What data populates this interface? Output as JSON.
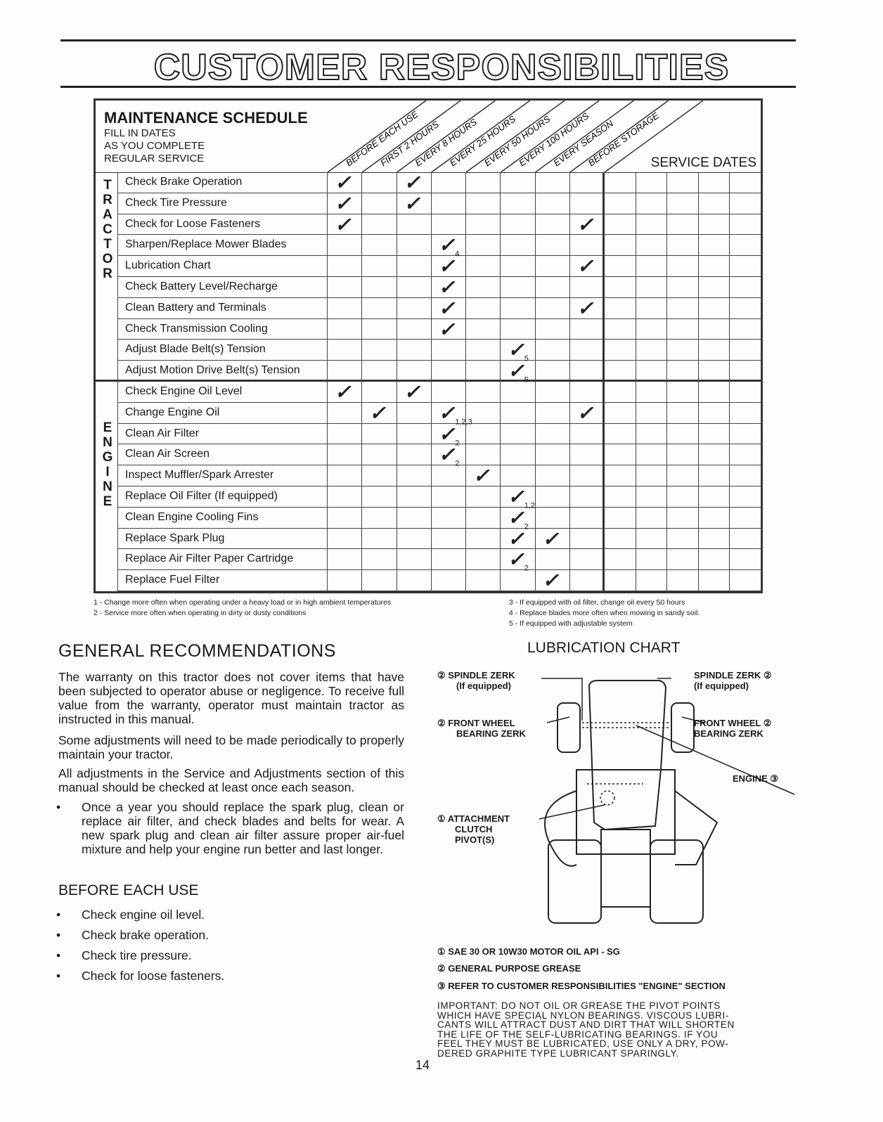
{
  "title": "CUSTOMER RESPONSIBILITIES",
  "schedule": {
    "heading": "MAINTENANCE SCHEDULE",
    "subheading": [
      "FILL IN DATES",
      "AS YOU COMPLETE",
      "REGULAR SERVICE"
    ],
    "intervals": [
      "BEFORE EACH USE",
      "FIRST 2 HOURS",
      "EVERY 8 HOURS",
      "EVERY 25 HOURS",
      "EVERY 50 HOURS",
      "EVERY 100 HOURS",
      "EVERY SEASON",
      "BEFORE STORAGE"
    ],
    "service_dates_label": "SERVICE DATES",
    "sections": [
      {
        "label": "TRACTOR",
        "rows": [
          {
            "task": "Check Brake Operation",
            "checks": [
              {
                "col": 0
              },
              {
                "col": 2
              }
            ]
          },
          {
            "task": "Check Tire Pressure",
            "checks": [
              {
                "col": 0
              },
              {
                "col": 2
              }
            ]
          },
          {
            "task": "Check for Loose Fasteners",
            "checks": [
              {
                "col": 0
              },
              {
                "col": 7
              }
            ]
          },
          {
            "task": "Sharpen/Replace Mower Blades",
            "checks": [
              {
                "col": 3,
                "note": "4"
              }
            ]
          },
          {
            "task": "Lubrication Chart",
            "checks": [
              {
                "col": 3
              },
              {
                "col": 7
              }
            ]
          },
          {
            "task": "Check Battery Level/Recharge",
            "checks": [
              {
                "col": 3
              }
            ]
          },
          {
            "task": "Clean Battery and Terminals",
            "checks": [
              {
                "col": 3
              },
              {
                "col": 7
              }
            ]
          },
          {
            "task": "Check Transmission Cooling",
            "checks": [
              {
                "col": 3
              }
            ]
          },
          {
            "task": "Adjust Blade Belt(s) Tension",
            "checks": [
              {
                "col": 5,
                "note": "5"
              }
            ]
          },
          {
            "task": "Adjust Motion Drive Belt(s) Tension",
            "checks": [
              {
                "col": 5,
                "note": "5"
              }
            ]
          }
        ]
      },
      {
        "label": "ENGINE",
        "rows": [
          {
            "task": "Check Engine Oil Level",
            "checks": [
              {
                "col": 0
              },
              {
                "col": 2
              }
            ]
          },
          {
            "task": "Change Engine Oil",
            "checks": [
              {
                "col": 1
              },
              {
                "col": 3,
                "note": "1,2,3"
              },
              {
                "col": 7
              }
            ]
          },
          {
            "task": "Clean Air Filter",
            "checks": [
              {
                "col": 3,
                "note": "2"
              }
            ]
          },
          {
            "task": "Clean Air Screen",
            "checks": [
              {
                "col": 3,
                "note": "2"
              }
            ]
          },
          {
            "task": "Inspect Muffler/Spark Arrester",
            "checks": [
              {
                "col": 4
              }
            ]
          },
          {
            "task": "Replace Oil Filter (If equipped)",
            "checks": [
              {
                "col": 5,
                "note": "1,2"
              }
            ]
          },
          {
            "task": "Clean Engine Cooling Fins",
            "checks": [
              {
                "col": 5,
                "note": "2"
              }
            ]
          },
          {
            "task": "Replace Spark Plug",
            "checks": [
              {
                "col": 5
              },
              {
                "col": 6
              }
            ]
          },
          {
            "task": "Replace Air Filter Paper Cartridge",
            "checks": [
              {
                "col": 5,
                "note": "2"
              }
            ]
          },
          {
            "task": "Replace Fuel Filter",
            "checks": [
              {
                "col": 6
              }
            ]
          }
        ]
      }
    ],
    "footnotes": [
      "1 - Change more often when operating under a heavy load or in high ambient temperatures",
      "2 - Service more often when operating in dirty or dusty conditions",
      "3 - If equipped with oil filter, change oil every 50 hours",
      "4 - Replace blades more often when mowing in sandy soil.",
      "5 - If equipped with adjustable system"
    ]
  },
  "general": {
    "heading": "GENERAL RECOMMENDATIONS",
    "paragraphs": [
      "The warranty on this tractor does not cover items that have been subjected to operator abuse or negligence. To receive full value from the warranty, operator must maintain tractor as instructed in this manual.",
      "Some adjustments will need to be made periodically to properly maintain your tractor.",
      "All adjustments in the Service and Adjustments section of this manual should be checked at least once each season."
    ],
    "bullet": "Once a year you should replace the spark plug, clean or replace air filter, and check blades and belts for wear. A new spark plug and clean air filter assure proper air-fuel mixture and help your engine run better and last longer."
  },
  "before_each_use": {
    "heading": "BEFORE EACH USE",
    "items": [
      "Check engine oil level.",
      "Check brake operation.",
      "Check tire pressure.",
      "Check for loose fasteners."
    ]
  },
  "lubrication": {
    "heading": "LUBRICATION CHART",
    "labels": {
      "spindle_left": "② SPINDLE ZERK",
      "spindle_left_sub": "(If equipped)",
      "spindle_right": "SPINDLE ZERK ②",
      "spindle_right_sub": "(If equipped)",
      "wheel_left": "② FRONT WHEEL",
      "wheel_left_sub": "BEARING ZERK",
      "wheel_right": "FRONT WHEEL ②",
      "wheel_right_sub": "BEARING ZERK",
      "engine": "ENGINE ③",
      "clutch": "① ATTACHMENT",
      "clutch_sub1": "CLUTCH",
      "clutch_sub2": "PIVOT(S)"
    },
    "legend": [
      "① SAE 30 OR 10W30 MOTOR OIL API - SG",
      "② GENERAL PURPOSE GREASE",
      "③ REFER TO CUSTOMER RESPONSIBILITIES \"ENGINE\" SECTION"
    ],
    "important": [
      "IMPORTANT: DO NOT OIL OR GREASE THE PIVOT POINTS",
      "WHICH HAVE SPECIAL NYLON BEARINGS. VISCOUS LUBRI-",
      "CANTS WILL ATTRACT DUST AND DIRT THAT WILL SHORTEN",
      "THE LIFE OF THE SELF-LUBRICATING BEARINGS. IF YOU",
      "FEEL THEY MUST BE LUBRICATED, USE ONLY A DRY, POW-",
      "DERED GRAPHITE TYPE LUBRICANT SPARINGLY."
    ]
  },
  "page_number": "14"
}
